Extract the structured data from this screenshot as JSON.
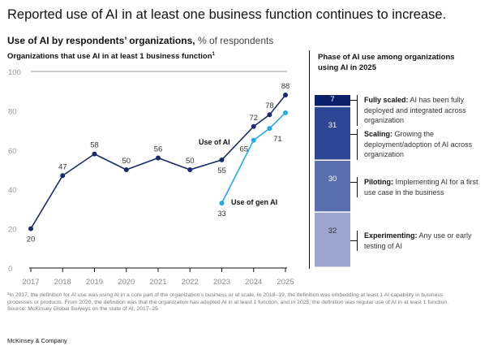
{
  "title": "Reported use of AI in at least one business function continues to increase.",
  "subtitle_bold": "Use of AI by respondents’ organizations,",
  "subtitle_unit": "% of respondents",
  "left_heading": "Organizations that use AI in at least 1 business function",
  "left_heading_sup": "1",
  "right_heading": "Phase of AI use among organizations using AI in 2025",
  "chart_data": [
    {
      "type": "line",
      "ylim": [
        0,
        100
      ],
      "yticks": [
        0,
        20,
        40,
        60,
        80,
        100
      ],
      "xticks": [
        "2017",
        "2018",
        "2019",
        "2020",
        "2021",
        "2022",
        "2023",
        "2024",
        "2025"
      ],
      "grid": "y-top-only",
      "series": [
        {
          "name": "Use of AI",
          "color": "#1b2a6b",
          "x": [
            2017,
            2018,
            2019,
            2020,
            2021,
            2022,
            2023,
            2024,
            2024.5,
            2025
          ],
          "values": [
            20,
            47,
            58,
            50,
            56,
            50,
            55,
            72,
            78,
            88
          ]
        },
        {
          "name": "Use of gen AI",
          "color": "#29a8e0",
          "x": [
            2023,
            2024,
            2024.5,
            2025
          ],
          "values": [
            33,
            65,
            71,
            79
          ]
        }
      ]
    },
    {
      "type": "bar",
      "stacked": true,
      "category": "2025",
      "segments": [
        {
          "name": "Fully scaled",
          "desc": "AI has been fully deployed and integrated across organization",
          "value": 7,
          "color": "#0b1f6b"
        },
        {
          "name": "Scaling",
          "desc": "Growing the deployment/adoption of AI across organization",
          "value": 31,
          "color": "#2e4795"
        },
        {
          "name": "Piloting",
          "desc": "Implementing AI for a first use case in the business",
          "value": 30,
          "color": "#5a6dae"
        },
        {
          "name": "Experimenting",
          "desc": "Any use or early testing of AI",
          "value": 32,
          "color": "#9ba5cd"
        }
      ]
    }
  ],
  "footnote": "¹In 2017, the definition for AI use was using AI in a core part of the organization’s business or at scale. In 2018–19, the definition was embedding at least 1 AI capability in business processes or products. From 2020, the definition was that the organization has adopted AI in at least 1 function, and in 2025, the definition was regular use of AI in at least 1 function.",
  "source": "Source: McKinsey Global Surveys on the state of AI, 2017–25",
  "brand": "McKinsey & Company"
}
